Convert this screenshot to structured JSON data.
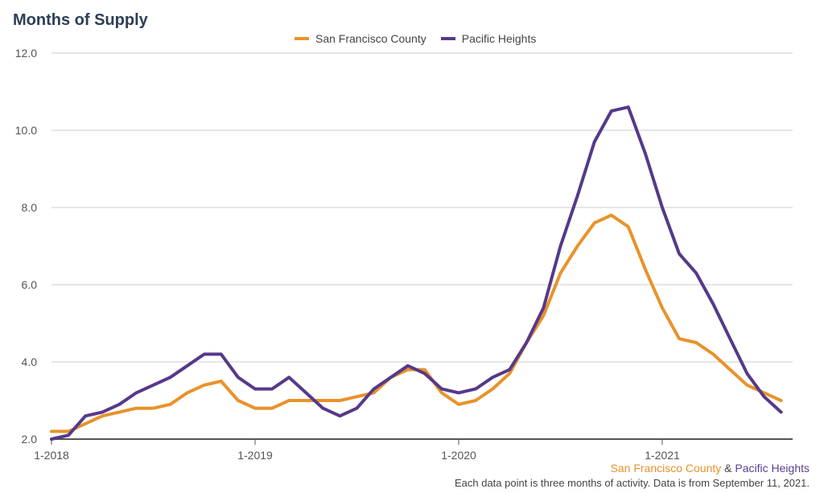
{
  "title": "Months of Supply",
  "colors": {
    "sf_county": "#e8932b",
    "pacific_heights": "#56398a",
    "grid": "#c9ccd1",
    "axis": "#555555"
  },
  "footer": {
    "sf_label": "San Francisco County",
    "connector": "&",
    "ph_label": "Pacific Heights",
    "note": "Each data point is three months of activity. Data is from September 11, 2021."
  },
  "chart_data": {
    "type": "line",
    "title": "Months of Supply",
    "xlabel": "",
    "ylabel": "",
    "ylim": [
      2.0,
      12.0
    ],
    "yticks": [
      "2.0",
      "4.0",
      "6.0",
      "8.0",
      "10.0",
      "12.0"
    ],
    "xticks": [
      "1-2018",
      "1-2019",
      "1-2020",
      "1-2021"
    ],
    "x": [
      "1-2018",
      "2-2018",
      "3-2018",
      "4-2018",
      "5-2018",
      "6-2018",
      "7-2018",
      "8-2018",
      "9-2018",
      "10-2018",
      "11-2018",
      "12-2018",
      "1-2019",
      "2-2019",
      "3-2019",
      "4-2019",
      "5-2019",
      "6-2019",
      "7-2019",
      "8-2019",
      "9-2019",
      "10-2019",
      "11-2019",
      "12-2019",
      "1-2020",
      "2-2020",
      "3-2020",
      "4-2020",
      "5-2020",
      "6-2020",
      "7-2020",
      "8-2020",
      "9-2020",
      "10-2020",
      "11-2020",
      "12-2020",
      "1-2021",
      "2-2021",
      "3-2021",
      "4-2021",
      "5-2021",
      "6-2021",
      "7-2021",
      "8-2021"
    ],
    "legend_position": "top-center",
    "grid": true,
    "series": [
      {
        "name": "San Francisco County",
        "values": [
          2.2,
          2.2,
          2.4,
          2.6,
          2.7,
          2.8,
          2.8,
          2.9,
          3.2,
          3.4,
          3.5,
          3.0,
          2.8,
          2.8,
          3.0,
          3.0,
          3.0,
          3.0,
          3.1,
          3.2,
          3.6,
          3.8,
          3.8,
          3.2,
          2.9,
          3.0,
          3.3,
          3.7,
          4.5,
          5.2,
          6.3,
          7.0,
          7.6,
          7.8,
          7.5,
          6.4,
          5.4,
          4.6,
          4.5,
          4.2,
          3.8,
          3.4,
          3.2,
          3.0
        ]
      },
      {
        "name": "Pacific Heights",
        "values": [
          2.0,
          2.1,
          2.6,
          2.7,
          2.9,
          3.2,
          3.4,
          3.6,
          3.9,
          4.2,
          4.2,
          3.6,
          3.3,
          3.3,
          3.6,
          3.2,
          2.8,
          2.6,
          2.8,
          3.3,
          3.6,
          3.9,
          3.7,
          3.3,
          3.2,
          3.3,
          3.6,
          3.8,
          4.5,
          5.4,
          7.0,
          8.3,
          9.7,
          10.5,
          10.6,
          9.4,
          8.0,
          6.8,
          6.3,
          5.5,
          4.6,
          3.7,
          3.1,
          2.7
        ]
      }
    ]
  }
}
